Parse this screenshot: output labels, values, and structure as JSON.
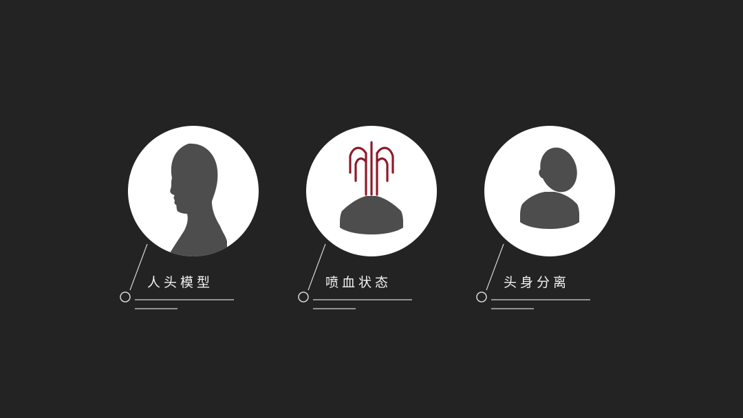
{
  "items": [
    {
      "label": "人头模型",
      "icon": "human-head-icon"
    },
    {
      "label": "喷血状态",
      "icon": "blood-spray-icon"
    },
    {
      "label": "头身分离",
      "icon": "head-separation-icon"
    }
  ],
  "colors": {
    "background": "#232323",
    "circle": "#ffffff",
    "silhouette": "#4d4d4d",
    "accent": "#8e1a2a",
    "line": "#d8d8d8"
  }
}
